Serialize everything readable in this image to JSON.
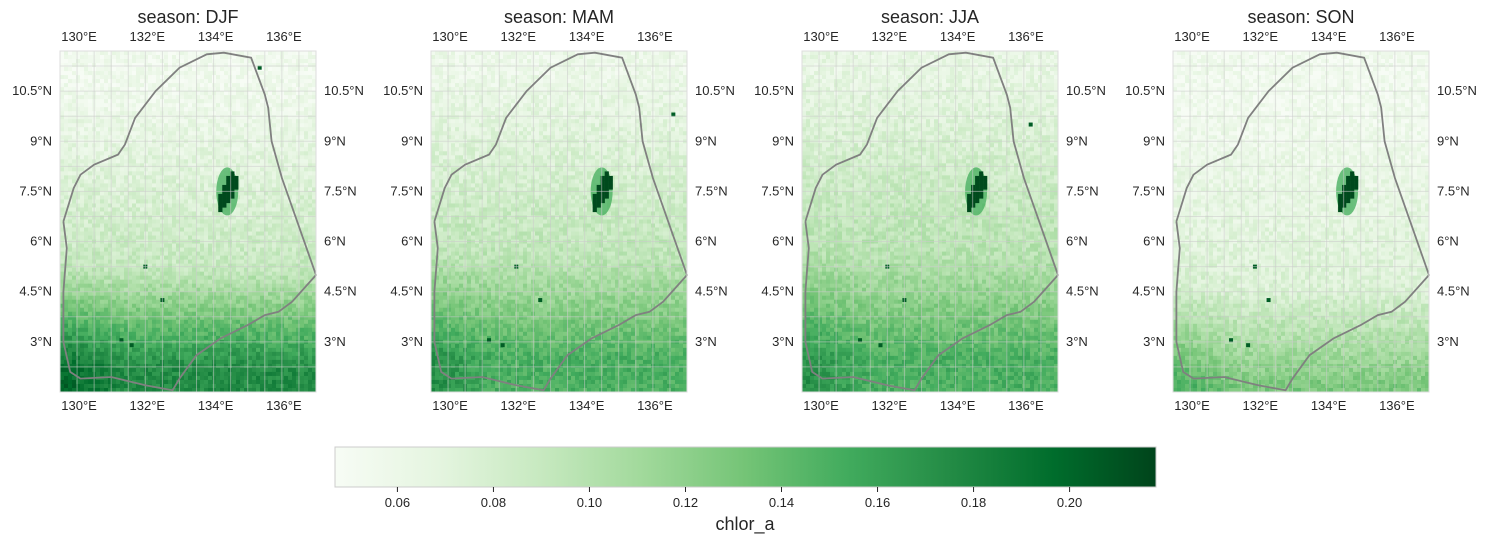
{
  "figure": {
    "colorbar": {
      "label": "chlor_a",
      "range": [
        0.047,
        0.218
      ],
      "ticks": [
        "0.06",
        "0.08",
        "0.10",
        "0.12",
        "0.14",
        "0.16",
        "0.18",
        "0.20"
      ],
      "tick_values": [
        0.06,
        0.08,
        0.1,
        0.12,
        0.14,
        0.16,
        0.18,
        0.2
      ],
      "colors": [
        "#f7fcf5",
        "#e5f5e0",
        "#c7e9c0",
        "#a1d99b",
        "#74c476",
        "#41ab5d",
        "#238b45",
        "#006d2c",
        "#00441b"
      ]
    },
    "map_extent": {
      "lon": [
        129.5,
        137.0
      ],
      "lat": [
        1.5,
        11.7
      ]
    },
    "lon_ticks": [
      "130°E",
      "132°E",
      "134°E",
      "136°E"
    ],
    "lon_tick_values": [
      130,
      132,
      134,
      136
    ],
    "lat_ticks": [
      "10.5°N",
      "9°N",
      "7.5°N",
      "6°N",
      "4.5°N",
      "3°N"
    ],
    "lat_tick_values": [
      10.5,
      9,
      7.5,
      6,
      4.5,
      3
    ],
    "boundary_color": "#808080",
    "grid_color": "#cccccc",
    "boundary_lonlat": [
      [
        129.6,
        6.6
      ],
      [
        129.7,
        5.8
      ],
      [
        129.6,
        4.5
      ],
      [
        129.6,
        3.0
      ],
      [
        129.8,
        2.1
      ],
      [
        130.1,
        1.9
      ],
      [
        131.0,
        1.95
      ],
      [
        132.0,
        1.7
      ],
      [
        132.8,
        1.55
      ],
      [
        133.0,
        1.9
      ],
      [
        133.5,
        2.6
      ],
      [
        134.2,
        3.1
      ],
      [
        135.0,
        3.5
      ],
      [
        135.5,
        3.8
      ],
      [
        135.9,
        3.9
      ],
      [
        136.3,
        4.2
      ],
      [
        137.0,
        5.0
      ],
      [
        136.0,
        7.9
      ],
      [
        135.7,
        9.0
      ],
      [
        135.6,
        10.0
      ],
      [
        135.5,
        10.4
      ],
      [
        135.1,
        11.5
      ],
      [
        134.3,
        11.65
      ],
      [
        133.8,
        11.6
      ],
      [
        133.0,
        11.2
      ],
      [
        132.3,
        10.5
      ],
      [
        131.7,
        9.7
      ],
      [
        131.4,
        8.9
      ],
      [
        131.2,
        8.6
      ],
      [
        130.5,
        8.3
      ],
      [
        130.1,
        8.0
      ],
      [
        129.9,
        7.6
      ],
      [
        129.6,
        6.6
      ]
    ],
    "panels": [
      {
        "title": "season: DJF",
        "chl_north": 0.055,
        "chl_mid": 0.09,
        "chl_south": 0.175,
        "front_lat": 5.2,
        "island": [
          [
            134.3,
            7.9
          ],
          [
            134.5,
            7.5
          ],
          [
            134.4,
            7.1
          ],
          [
            134.6,
            7.7
          ]
        ],
        "specks": [
          [
            135.35,
            11.2
          ],
          [
            132.0,
            5.25
          ],
          [
            132.5,
            4.25
          ],
          [
            131.3,
            3.05
          ],
          [
            131.6,
            2.9
          ]
        ]
      },
      {
        "title": "season: MAM",
        "chl_north": 0.06,
        "chl_mid": 0.095,
        "chl_south": 0.15,
        "front_lat": 5.5,
        "island": [
          [
            134.4,
            7.9
          ],
          [
            134.5,
            7.5
          ],
          [
            134.3,
            7.1
          ],
          [
            134.6,
            7.7
          ]
        ],
        "specks": [
          [
            132.0,
            5.25
          ],
          [
            132.7,
            4.25
          ],
          [
            131.2,
            3.05
          ],
          [
            131.6,
            2.9
          ],
          [
            136.6,
            9.8
          ]
        ]
      },
      {
        "title": "season: JJA",
        "chl_north": 0.065,
        "chl_mid": 0.1,
        "chl_south": 0.15,
        "front_lat": 5.5,
        "island": [
          [
            134.5,
            7.9
          ],
          [
            134.5,
            7.5
          ],
          [
            134.3,
            7.1
          ],
          [
            134.6,
            7.7
          ]
        ],
        "specks": [
          [
            136.2,
            9.5
          ],
          [
            132.0,
            5.25
          ],
          [
            132.5,
            4.25
          ],
          [
            131.2,
            3.05
          ],
          [
            131.8,
            2.9
          ]
        ]
      },
      {
        "title": "season: SON",
        "chl_north": 0.055,
        "chl_mid": 0.075,
        "chl_south": 0.13,
        "front_lat": 4.6,
        "island": [
          [
            134.5,
            7.9
          ],
          [
            134.5,
            7.5
          ],
          [
            134.3,
            7.1
          ],
          [
            134.6,
            7.7
          ]
        ],
        "specks": [
          [
            131.9,
            5.25
          ],
          [
            132.3,
            4.25
          ],
          [
            131.2,
            3.05
          ],
          [
            131.7,
            2.9
          ]
        ]
      }
    ]
  }
}
